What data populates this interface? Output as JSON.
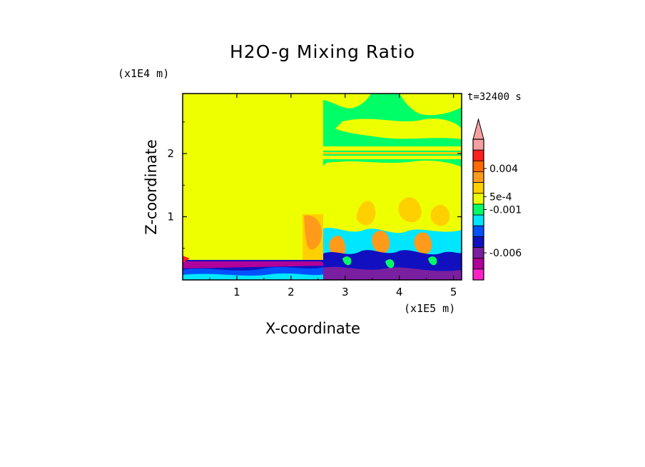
{
  "chart_data": {
    "type": "heatmap",
    "title": "H2O-g Mixing Ratio",
    "xlabel": "X-coordinate",
    "ylabel": "Z-coordinate",
    "x_unit": "(x1E5 m)",
    "y_unit": "(x1E4 m)",
    "time_label": "t=32400 s",
    "xlim": [
      0,
      5.15
    ],
    "ylim": [
      0,
      2.95
    ],
    "x_ticks": [
      "1",
      "2",
      "3",
      "4",
      "5"
    ],
    "y_ticks": [
      "1",
      "2"
    ],
    "colorbar": {
      "tick_labels": [
        "0.004",
        "5e-4",
        "-0.001",
        "-0.006"
      ],
      "levels_top_to_bottom": [
        {
          "color": "#f5a0a0"
        },
        {
          "color": "#ff2020"
        },
        {
          "color": "#ff6a00"
        },
        {
          "color": "#ff9a1a"
        },
        {
          "color": "#ffd000"
        },
        {
          "color": "#eeff00"
        },
        {
          "color": "#00ff66"
        },
        {
          "color": "#00e6ff"
        },
        {
          "color": "#0050ff"
        },
        {
          "color": "#1010c0"
        },
        {
          "color": "#7a1fa0"
        },
        {
          "color": "#b0009a"
        },
        {
          "color": "#ff20c8"
        }
      ],
      "extend": "max"
    },
    "field_regions": [
      {
        "x": [
          0,
          2.55
        ],
        "z": [
          0.3,
          2.95
        ],
        "color": "#eeff00",
        "desc": "uniform upper-left layer"
      },
      {
        "x": [
          0,
          2.55
        ],
        "z": [
          0.0,
          0.3
        ],
        "color": "#1010c0",
        "desc": "surface boundary layer"
      },
      {
        "x": [
          2.55,
          5.15
        ],
        "z": [
          2.0,
          2.95
        ],
        "color": "#00ff66",
        "desc": "upper-right layer"
      },
      {
        "x": [
          2.55,
          5.15
        ],
        "z": [
          0.0,
          0.8
        ],
        "color": "#00e6ff",
        "desc": "lower-right convective layer"
      }
    ]
  },
  "colors": {
    "background": "#ffffff",
    "axis": "#000000"
  }
}
